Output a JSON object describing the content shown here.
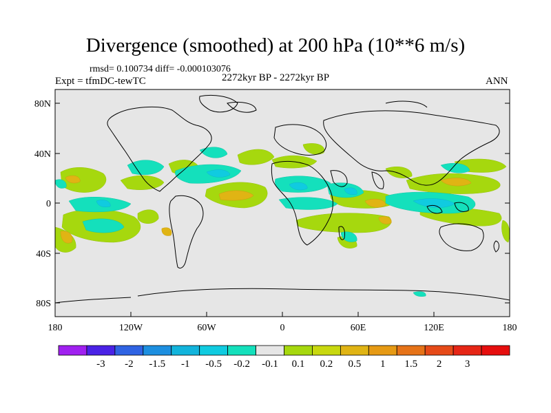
{
  "title": "Divergence (smoothed) at 200 hPa (10**6 m/s)",
  "stats": "rmsd= 0.100734  diff= -0.000103076",
  "experiment": "Expt = tfmDC-tewTC",
  "period": "2272kyr BP - 2272kyr BP",
  "season": "ANN",
  "map": {
    "background_color": "#e6e6e6",
    "lat_labels": [
      "80N",
      "40N",
      "0",
      "40S",
      "80S"
    ],
    "lon_labels": [
      "180",
      "120W",
      "60W",
      "0",
      "60E",
      "120E",
      "180"
    ]
  },
  "colorbar": {
    "colors": [
      "#a020f0",
      "#4a22e6",
      "#2f63e3",
      "#1d8fe0",
      "#12b4dc",
      "#10cbe0",
      "#14e0bc",
      "#e6e6e6",
      "#a6d80e",
      "#c8d80f",
      "#e0b414",
      "#e69a14",
      "#e67318",
      "#e64a18",
      "#e62616",
      "#e60e0e"
    ],
    "labels": [
      "-3",
      "-2",
      "-1.5",
      "-1",
      "-0.5",
      "-0.2",
      "-0.1",
      "0.1",
      "0.2",
      "0.5",
      "1",
      "1.5",
      "2",
      "3"
    ]
  }
}
